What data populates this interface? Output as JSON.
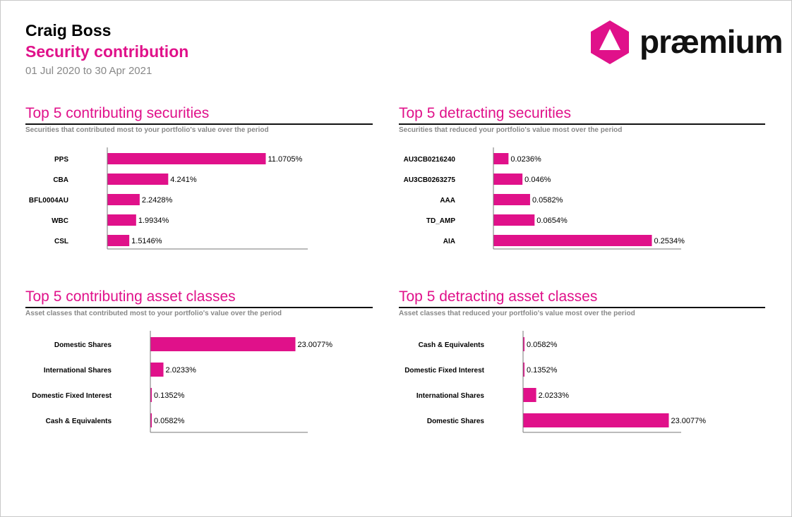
{
  "header": {
    "client_name": "Craig Boss",
    "report_title": "Security contribution",
    "period": "01 Jul 2020 to 30 Apr 2021"
  },
  "logo": {
    "text": "præmium",
    "colors": {
      "mark": "#e0118a",
      "text": "#111111"
    }
  },
  "colors": {
    "accent": "#e0118a",
    "bar": "#e0118a",
    "subtitle": "#888888",
    "axis": "#777777"
  },
  "panels": [
    {
      "title": "Top 5 contributing securities",
      "subtitle": "Securities that contributed most to your portfolio's value over the period"
    },
    {
      "title": "Top 5 detracting securities",
      "subtitle": "Securities that reduced your portfolio's value most over the period"
    },
    {
      "title": "Top 5 contributing asset classes",
      "subtitle": "Asset classes that contributed most to your portfolio's value over the period"
    },
    {
      "title": "Top 5 detracting asset classes",
      "subtitle": "Asset classes that reduced your portfolio's value most over the period"
    }
  ],
  "chart_data": [
    {
      "type": "bar",
      "orientation": "horizontal",
      "title": "Top 5 contributing securities",
      "subtitle": "Securities that contributed most to your portfolio's value over the period",
      "categories": [
        "PPS",
        "CBA",
        "BFL0004AU",
        "WBC",
        "CSL"
      ],
      "values": [
        11.0705,
        4.241,
        2.2428,
        1.9934,
        1.5146
      ],
      "labels": [
        "11.0705%",
        "4.241%",
        "2.2428%",
        "1.9934%",
        "1.5146%"
      ],
      "xlim": [
        0,
        11.0705
      ],
      "grid": false
    },
    {
      "type": "bar",
      "orientation": "horizontal",
      "title": "Top 5 detracting securities",
      "subtitle": "Securities that reduced your portfolio's value most over the period",
      "categories": [
        "AU3CB0216240",
        "AU3CB0263275",
        "AAA",
        "TD_AMP",
        "AIA"
      ],
      "values": [
        0.0236,
        0.046,
        0.0582,
        0.0654,
        0.2534
      ],
      "labels": [
        "0.0236%",
        "0.046%",
        "0.0582%",
        "0.0654%",
        "0.2534%"
      ],
      "xlim": [
        0,
        0.2534
      ],
      "grid": false
    },
    {
      "type": "bar",
      "orientation": "horizontal",
      "title": "Top 5 contributing asset classes",
      "subtitle": "Asset classes that contributed most to your portfolio's value over the period",
      "categories": [
        "Domestic Shares",
        "International Shares",
        "Domestic Fixed Interest",
        "Cash & Equivalents"
      ],
      "values": [
        23.0077,
        2.0233,
        0.1352,
        0.0582
      ],
      "labels": [
        "23.0077%",
        "2.0233%",
        "0.1352%",
        "0.0582%"
      ],
      "xlim": [
        0,
        23.0077
      ],
      "grid": false
    },
    {
      "type": "bar",
      "orientation": "horizontal",
      "title": "Top 5 detracting asset classes",
      "subtitle": "Asset classes that reduced your portfolio's value most over the period",
      "categories": [
        "Cash & Equivalents",
        "Domestic Fixed Interest",
        "International Shares",
        "Domestic Shares"
      ],
      "values": [
        0.0582,
        0.1352,
        2.0233,
        23.0077
      ],
      "labels": [
        "0.0582%",
        "0.1352%",
        "2.0233%",
        "23.0077%"
      ],
      "xlim": [
        0,
        23.0077
      ],
      "grid": false
    }
  ]
}
